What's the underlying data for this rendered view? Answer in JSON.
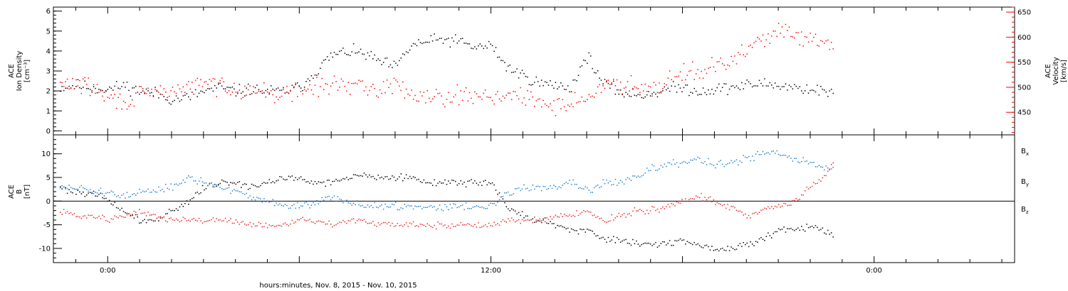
{
  "figure": {
    "xlabel": "hours:minutes, Nov.  8, 2015 - Nov. 10, 2015"
  },
  "chart_data": [
    {
      "type": "scatter",
      "panel": "plasma",
      "ylabel_lines": [
        "ACE",
        "Ion Density",
        "[cm⁻³]"
      ],
      "y2label_lines": [
        "ACE",
        "Velocity",
        "[km/s]"
      ],
      "ylim": [
        -0.2,
        6.2
      ],
      "yticks": [
        0,
        1,
        2,
        3,
        4,
        5,
        6
      ],
      "y2lim": [
        405,
        660
      ],
      "y2ticks": [
        450,
        500,
        550,
        600,
        650
      ],
      "x_ticks": [
        "0:00",
        "12:00",
        "0:00"
      ],
      "x_tick_hours": [
        0,
        12,
        24
      ],
      "xlim_hours": [
        -1.7,
        28.4
      ],
      "data_end_hour": 22.7,
      "series": [
        {
          "key": "density",
          "axis": "left",
          "color": "#000000",
          "x_hours": [
            -1.5,
            -1,
            -0.5,
            0,
            0.5,
            1,
            1.5,
            2,
            2.5,
            3,
            3.5,
            4,
            4.5,
            5,
            5.5,
            6,
            6.5,
            7,
            7.5,
            8,
            8.5,
            9,
            9.5,
            10,
            10.5,
            11,
            11.5,
            12,
            12.5,
            13,
            13.5,
            14,
            14.5,
            15,
            15.5,
            16,
            16.5,
            17,
            17.5,
            18,
            18.5,
            19,
            19.5,
            20,
            20.5,
            21,
            21.5,
            22,
            22.5,
            22.7
          ],
          "values": [
            2.2,
            2.3,
            2.2,
            2.1,
            2.3,
            2.0,
            1.9,
            1.6,
            1.7,
            2.0,
            2.2,
            2.0,
            2.1,
            2.0,
            2.0,
            2.2,
            3.0,
            3.8,
            4.0,
            3.9,
            3.5,
            3.2,
            4.3,
            4.5,
            4.6,
            4.5,
            4.2,
            4.3,
            3.2,
            2.8,
            2.4,
            2.3,
            2.2,
            3.8,
            2.4,
            2.0,
            1.8,
            1.9,
            2.1,
            2.2,
            2.0,
            2.1,
            2.2,
            2.3,
            2.4,
            2.3,
            2.2,
            2.1,
            2.0,
            1.8
          ],
          "noise": 0.3
        },
        {
          "key": "velocity",
          "axis": "right",
          "color": "#ff0000",
          "x_hours": [
            -1.5,
            -1,
            -0.5,
            0,
            0.5,
            1,
            1.5,
            2,
            2.5,
            3,
            3.5,
            4,
            4.5,
            5,
            5.5,
            6,
            6.5,
            7,
            7.5,
            8,
            8.5,
            9,
            9.5,
            10,
            10.5,
            11,
            11.5,
            12,
            12.5,
            13,
            13.5,
            14,
            14.5,
            15,
            15.5,
            16,
            16.5,
            17,
            17.5,
            18,
            18.5,
            19,
            19.5,
            20,
            20.5,
            21,
            21.5,
            22,
            22.5,
            22.7
          ],
          "values": [
            505,
            510,
            500,
            480,
            470,
            485,
            490,
            495,
            500,
            510,
            505,
            500,
            495,
            490,
            485,
            495,
            500,
            505,
            510,
            495,
            500,
            505,
            490,
            485,
            484,
            484,
            485,
            485,
            484,
            480,
            470,
            465,
            470,
            480,
            500,
            510,
            505,
            500,
            515,
            530,
            535,
            540,
            550,
            575,
            600,
            615,
            600,
            595,
            585,
            575
          ],
          "noise": 18
        }
      ]
    },
    {
      "type": "scatter",
      "panel": "magnetic_field",
      "ylabel_lines": [
        "ACE",
        "B",
        "[nT]"
      ],
      "ylim": [
        -13,
        14
      ],
      "yticks": [
        -10,
        -5,
        0,
        5,
        10
      ],
      "x_ticks": [
        "0:00",
        "12:00",
        "0:00"
      ],
      "x_tick_hours": [
        0,
        12,
        24
      ],
      "xlim_hours": [
        -1.7,
        28.4
      ],
      "data_end_hour": 22.7,
      "series": [
        {
          "key": "bx",
          "name": "B",
          "subscript": "x",
          "color": "#000000",
          "x_hours": [
            -1.5,
            -1,
            -0.5,
            0,
            0.5,
            1,
            1.5,
            2,
            2.5,
            3,
            3.5,
            4,
            4.5,
            5,
            5.5,
            6,
            6.5,
            7,
            7.5,
            8,
            8.5,
            9,
            9.5,
            10,
            10.5,
            11,
            11.5,
            12,
            12.5,
            13,
            13.5,
            14,
            14.5,
            15,
            15.5,
            16,
            16.5,
            17,
            17.5,
            18,
            18.5,
            19,
            19.5,
            20,
            20.5,
            21,
            21.5,
            22,
            22.5,
            22.7
          ],
          "values": [
            3,
            2,
            2,
            0,
            -2,
            -4,
            -4,
            -2,
            0,
            3,
            4,
            4,
            3,
            4,
            5,
            5,
            4,
            4,
            5,
            6,
            5,
            5,
            5,
            4,
            4,
            4,
            4,
            4,
            -1,
            -3,
            -4,
            -5,
            -6,
            -6,
            -8,
            -8,
            -9,
            -9,
            -9,
            -8,
            -9,
            -10,
            -10,
            -9,
            -8,
            -6,
            -6,
            -5,
            -6,
            -7
          ],
          "noise": 0.7
        },
        {
          "key": "by",
          "name": "B",
          "subscript": "y",
          "color": "#1e7fd6",
          "x_hours": [
            -1.5,
            -1,
            -0.5,
            0,
            0.5,
            1,
            1.5,
            2,
            2.5,
            3,
            3.5,
            4,
            4.5,
            5,
            5.5,
            6,
            6.5,
            7,
            7.5,
            8,
            8.5,
            9,
            9.5,
            10,
            10.5,
            11,
            11.5,
            12,
            12.5,
            13,
            13.5,
            14,
            14.5,
            15,
            15.5,
            16,
            16.5,
            17,
            17.5,
            18,
            18.5,
            19,
            19.5,
            20,
            20.5,
            21,
            21.5,
            22,
            22.5,
            22.7
          ],
          "values": [
            3,
            3,
            2,
            2,
            1,
            2,
            2,
            3,
            5,
            4,
            3,
            2,
            1,
            0,
            -1,
            -1,
            0,
            1,
            0,
            -1,
            -1,
            -1,
            -1,
            -1,
            -1,
            -1,
            -1,
            -1,
            2,
            3,
            3,
            3,
            4,
            2,
            4,
            4,
            5,
            7,
            8,
            8,
            9,
            8,
            8,
            9,
            10,
            10,
            9,
            8,
            7,
            7
          ],
          "noise": 0.8
        },
        {
          "key": "bz",
          "name": "B",
          "subscript": "z",
          "color": "#ee2222",
          "x_hours": [
            -1.5,
            -1,
            -0.5,
            0,
            0.5,
            1,
            1.5,
            2,
            2.5,
            3,
            3.5,
            4,
            4.5,
            5,
            5.5,
            6,
            6.5,
            7,
            7.5,
            8,
            8.5,
            9,
            9.5,
            10,
            10.5,
            11,
            11.5,
            12,
            12.5,
            13,
            13.5,
            14,
            14.5,
            15,
            15.5,
            16,
            16.5,
            17,
            17.5,
            18,
            18.5,
            19,
            19.5,
            20,
            20.5,
            21,
            21.5,
            22,
            22.5,
            22.7
          ],
          "values": [
            -2,
            -3,
            -3,
            -4,
            -3,
            -2,
            -3,
            -4,
            -4,
            -4,
            -4,
            -4,
            -5,
            -5,
            -5,
            -4,
            -4,
            -5,
            -4,
            -4,
            -5,
            -5,
            -5,
            -5,
            -5,
            -5,
            -5,
            -5,
            -4,
            -4,
            -4,
            -3,
            -3,
            -2,
            -4,
            -3,
            -2,
            -2,
            -1,
            0,
            1,
            0,
            -1,
            -3,
            -2,
            -1,
            0,
            3,
            6,
            8
          ],
          "noise": 0.7
        }
      ]
    }
  ]
}
